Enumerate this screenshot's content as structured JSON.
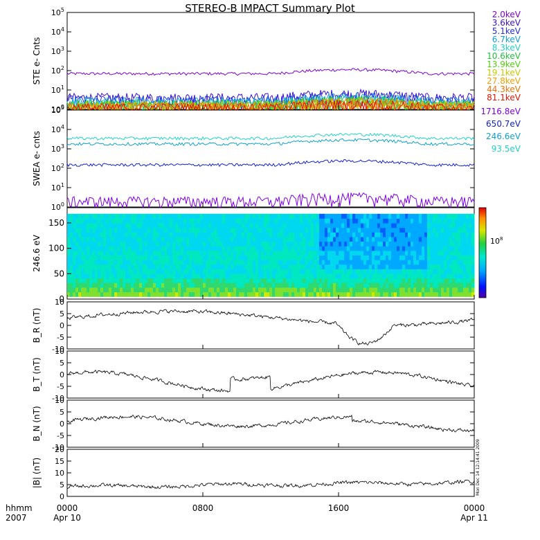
{
  "title": "STEREO-B IMPACT Summary Plot",
  "colors": {
    "axis": "#000000",
    "ste_levels": [
      "#8000cc",
      "#3a10c8",
      "#1e2ee0",
      "#10a0d8",
      "#20d0c0",
      "#20c040",
      "#50d010",
      "#c8c800",
      "#f0a000",
      "#f07000",
      "#e01000"
    ],
    "swea_levels": [
      "#8000e0",
      "#1020c8",
      "#10a0c8",
      "#20d0c8"
    ]
  },
  "chart_data": [
    {
      "type": "line",
      "ylabel": "STE e- Cnts",
      "log_scale": true,
      "ylim": [
        1,
        100000
      ],
      "yticks": [
        "10^0",
        "10^1",
        "10^2",
        "10^3",
        "10^4",
        "10^5"
      ],
      "legend_position": "right",
      "series": [
        {
          "name": "2.0keV",
          "color": "#8000cc",
          "level": 70
        },
        {
          "name": "3.6keV",
          "color": "#3a10c8",
          "level": 4
        },
        {
          "name": "5.1keV",
          "color": "#1e2ee0",
          "level": 3
        },
        {
          "name": "6.7keV",
          "color": "#10a0d8",
          "level": 2.5
        },
        {
          "name": "8.3keV",
          "color": "#20d0c0",
          "level": 2
        },
        {
          "name": "10.6keV",
          "color": "#20c040",
          "level": 1.8
        },
        {
          "name": "13.9keV",
          "color": "#50d010",
          "level": 1.6
        },
        {
          "name": "19.1keV",
          "color": "#c8c800",
          "level": 1.5
        },
        {
          "name": "27.8keV",
          "color": "#f0a000",
          "level": 1.4
        },
        {
          "name": "44.3keV",
          "color": "#f07000",
          "level": 1.3
        },
        {
          "name": "81.1keV",
          "color": "#e01000",
          "level": 1.2
        }
      ]
    },
    {
      "type": "line",
      "ylabel": "SWEA e- cnts",
      "log_scale": true,
      "ylim": [
        1,
        100000
      ],
      "yticks": [
        "10^0",
        "10^1",
        "10^2",
        "10^3",
        "10^4",
        "10^5"
      ],
      "legend_position": "right",
      "series": [
        {
          "name": "1716.8eV",
          "color": "#8000e0",
          "level": 2
        },
        {
          "name": "650.7eV",
          "color": "#1020c8",
          "level": 150
        },
        {
          "name": "246.6eV",
          "color": "#10a0c8",
          "level": 1800
        },
        {
          "name": "93.5eV",
          "color": "#20d0c8",
          "level": 3500
        }
      ]
    },
    {
      "type": "heatmap",
      "ylabel": "246.6 eV",
      "ylim": [
        0,
        180
      ],
      "yticks": [
        "0",
        "50",
        "100",
        "150"
      ],
      "colorbar_label": "10^8"
    },
    {
      "type": "line",
      "ylabel": "B_R (nT)",
      "ylim": [
        -10,
        10
      ],
      "yticks": [
        "-10",
        "-5",
        "0",
        "5",
        "10"
      ]
    },
    {
      "type": "line",
      "ylabel": "B_T (nT)",
      "ylim": [
        -10,
        10
      ],
      "yticks": [
        "-10",
        "-5",
        "0",
        "5",
        "10"
      ]
    },
    {
      "type": "line",
      "ylabel": "B_N (nT)",
      "ylim": [
        -10,
        10
      ],
      "yticks": [
        "-10",
        "-5",
        "0",
        "5",
        "10"
      ]
    },
    {
      "type": "line",
      "ylabel": "|B| (nT)",
      "ylim": [
        0,
        20
      ],
      "yticks": [
        "0",
        "5",
        "10",
        "15",
        "20"
      ]
    }
  ],
  "time_axis": {
    "label_top": "hhmm",
    "label_bottom": "2007",
    "ticks": [
      {
        "time": "0000",
        "date": "Apr 10"
      },
      {
        "time": "0800",
        "date": ""
      },
      {
        "time": "1600",
        "date": ""
      },
      {
        "time": "0000",
        "date": "Apr 11"
      }
    ]
  },
  "side_stamp": {
    "line1": "Mon Dec 14 12:14:41 2009"
  }
}
